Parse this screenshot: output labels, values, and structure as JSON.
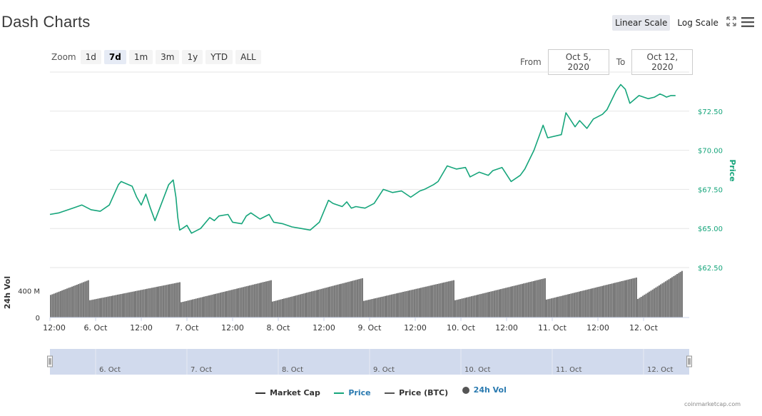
{
  "header": {
    "title": "Dash Charts",
    "scale_linear": "Linear Scale",
    "scale_log": "Log Scale"
  },
  "zoom": {
    "label": "Zoom",
    "buttons": [
      "1d",
      "7d",
      "1m",
      "3m",
      "1y",
      "YTD",
      "ALL"
    ],
    "active": "7d"
  },
  "range": {
    "from_label": "From",
    "from_value": "Oct 5, 2020",
    "to_label": "To",
    "to_value": "Oct 12, 2020"
  },
  "legend": {
    "market_cap": "Market Cap",
    "price": "Price",
    "price_btc": "Price (BTC)",
    "vol": "24h Vol"
  },
  "credit": "coinmarketcap.com",
  "colors": {
    "price": "#16a57b",
    "volume": "#7a7a7a",
    "navigator": "#ccd6eb"
  },
  "chart_data": {
    "type": "line",
    "y_axis": {
      "title": "Price",
      "ticks": [
        "$72.50",
        "$70.00",
        "$67.50",
        "$65.00",
        "$62.50"
      ],
      "tick_values": [
        72.5,
        70,
        67.5,
        65,
        62.5
      ],
      "ylim": [
        62.5,
        75
      ]
    },
    "vol_axis": {
      "title": "24h Vol",
      "ticks": [
        "400 M",
        "0"
      ],
      "tick_values": [
        400,
        0
      ],
      "ylim": [
        0,
        750
      ]
    },
    "x_axis": {
      "ticks": [
        "12:00",
        "6. Oct",
        "12:00",
        "7. Oct",
        "12:00",
        "8. Oct",
        "12:00",
        "9. Oct",
        "12:00",
        "10. Oct",
        "12:00",
        "11. Oct",
        "12:00",
        "12. Oct"
      ],
      "tick_days": [
        0.0,
        0.5,
        1.0,
        1.5,
        2.0,
        2.5,
        3.0,
        3.5,
        4.0,
        4.5,
        5.0,
        5.5,
        6.0,
        6.5
      ],
      "xlim": [
        0,
        7.0
      ]
    },
    "navigator_labels": [
      "6. Oct",
      "7. Oct",
      "8. Oct",
      "9. Oct",
      "10. Oct",
      "11. Oct",
      "12. Oct"
    ],
    "series": [
      {
        "name": "Price",
        "x": [
          0.0,
          0.1,
          0.25,
          0.35,
          0.45,
          0.55,
          0.65,
          0.75,
          0.78,
          0.9,
          0.95,
          1.0,
          1.05,
          1.1,
          1.15,
          1.3,
          1.35,
          1.38,
          1.4,
          1.42,
          1.45,
          1.5,
          1.55,
          1.65,
          1.75,
          1.8,
          1.85,
          1.95,
          2.0,
          2.1,
          2.15,
          2.2,
          2.3,
          2.4,
          2.45,
          2.55,
          2.65,
          2.75,
          2.85,
          2.95,
          3.05,
          3.1,
          3.2,
          3.25,
          3.3,
          3.35,
          3.45,
          3.55,
          3.65,
          3.75,
          3.85,
          3.95,
          4.05,
          4.1,
          4.2,
          4.25,
          4.35,
          4.45,
          4.55,
          4.6,
          4.7,
          4.8,
          4.85,
          4.95,
          5.05,
          5.15,
          5.2,
          5.3,
          5.4,
          5.45,
          5.6,
          5.65,
          5.75,
          5.8,
          5.88,
          5.95,
          6.05,
          6.1,
          6.2,
          6.25,
          6.3,
          6.35,
          6.45,
          6.55,
          6.62,
          6.68,
          6.72,
          6.75,
          6.8,
          6.85
        ],
        "values": [
          65.9,
          66.0,
          66.3,
          66.5,
          66.2,
          66.1,
          66.5,
          67.8,
          68.0,
          67.7,
          67.0,
          66.5,
          67.2,
          66.3,
          65.5,
          67.8,
          68.1,
          67.0,
          65.7,
          64.9,
          65.0,
          65.2,
          64.7,
          65.0,
          65.7,
          65.5,
          65.8,
          65.9,
          65.4,
          65.3,
          65.8,
          66.0,
          65.6,
          65.9,
          65.4,
          65.3,
          65.1,
          65.0,
          64.9,
          65.4,
          66.8,
          66.6,
          66.4,
          66.7,
          66.3,
          66.4,
          66.3,
          66.6,
          67.5,
          67.3,
          67.4,
          67.0,
          67.4,
          67.5,
          67.8,
          68.0,
          69.0,
          68.8,
          68.9,
          68.3,
          68.6,
          68.4,
          68.7,
          68.9,
          68.0,
          68.4,
          68.8,
          70.0,
          71.6,
          70.8,
          71.0,
          72.4,
          71.5,
          71.9,
          71.4,
          72.0,
          72.3,
          72.6,
          73.8,
          74.2,
          73.9,
          73.0,
          73.5,
          73.3,
          73.4,
          73.6,
          73.5,
          73.4,
          73.5,
          73.5
        ]
      },
      {
        "name": "24h Vol",
        "day_ramps": [
          [
            340,
            560
          ],
          [
            260,
            530
          ],
          [
            230,
            560
          ],
          [
            240,
            590
          ],
          [
            250,
            560
          ],
          [
            260,
            590
          ],
          [
            270,
            600
          ],
          [
            280,
            700
          ],
          [
            250,
            430
          ]
        ]
      }
    ]
  }
}
